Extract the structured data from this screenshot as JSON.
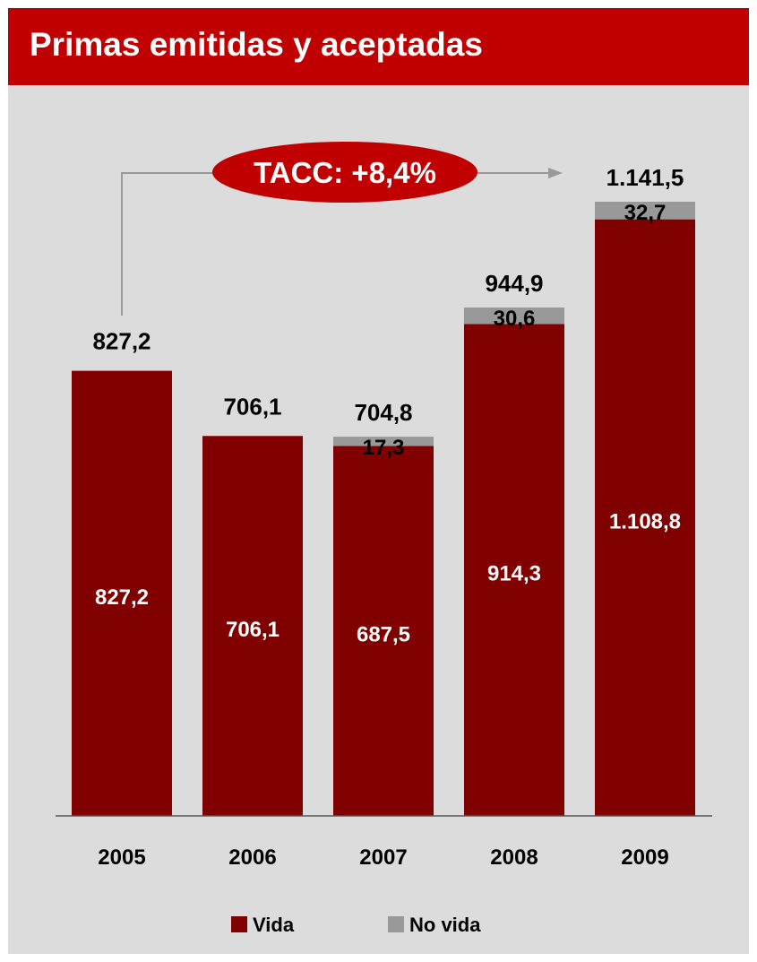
{
  "header": {
    "title": "Primas emitidas y aceptadas"
  },
  "colors": {
    "header": "#c00000",
    "vida": "#800000",
    "no_vida": "#999999",
    "background": "#dcdcdc",
    "badge": "#c00000"
  },
  "chart_data": {
    "type": "bar",
    "stacked": true,
    "categories": [
      "2005",
      "2006",
      "2007",
      "2008",
      "2009"
    ],
    "series": [
      {
        "name": "Vida",
        "values": [
          827.2,
          706.1,
          687.5,
          914.3,
          1108.8
        ],
        "labels": [
          "827,2",
          "706,1",
          "687,5",
          "914,3",
          "1.108,8"
        ]
      },
      {
        "name": "No vida",
        "values": [
          0,
          0,
          17.3,
          30.6,
          32.7
        ],
        "labels": [
          "",
          "",
          "17,3",
          "30,6",
          "32,7"
        ]
      }
    ],
    "totals": [
      827.2,
      706.1,
      704.8,
      944.9,
      1141.5
    ],
    "total_labels": [
      "827,2",
      "706,1",
      "704,8",
      "944,9",
      "1.141,5"
    ],
    "annotation": "TACC: +8,4%",
    "legend_position": "bottom",
    "grid": false
  }
}
